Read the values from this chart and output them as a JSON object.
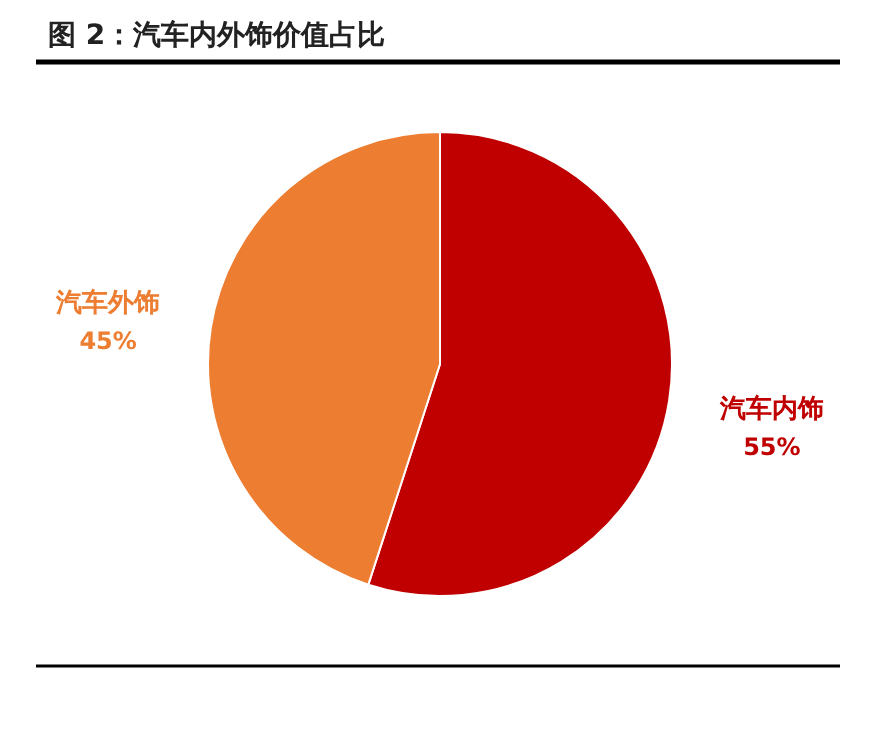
{
  "chart_data": {
    "type": "pie",
    "title": "图 2：汽车内外饰价值占比",
    "categories": [
      "汽车内饰",
      "汽车外饰"
    ],
    "values": [
      55,
      45
    ],
    "colors": [
      "#c00000",
      "#ed7d31"
    ],
    "value_labels": [
      "55%",
      "45%"
    ]
  }
}
